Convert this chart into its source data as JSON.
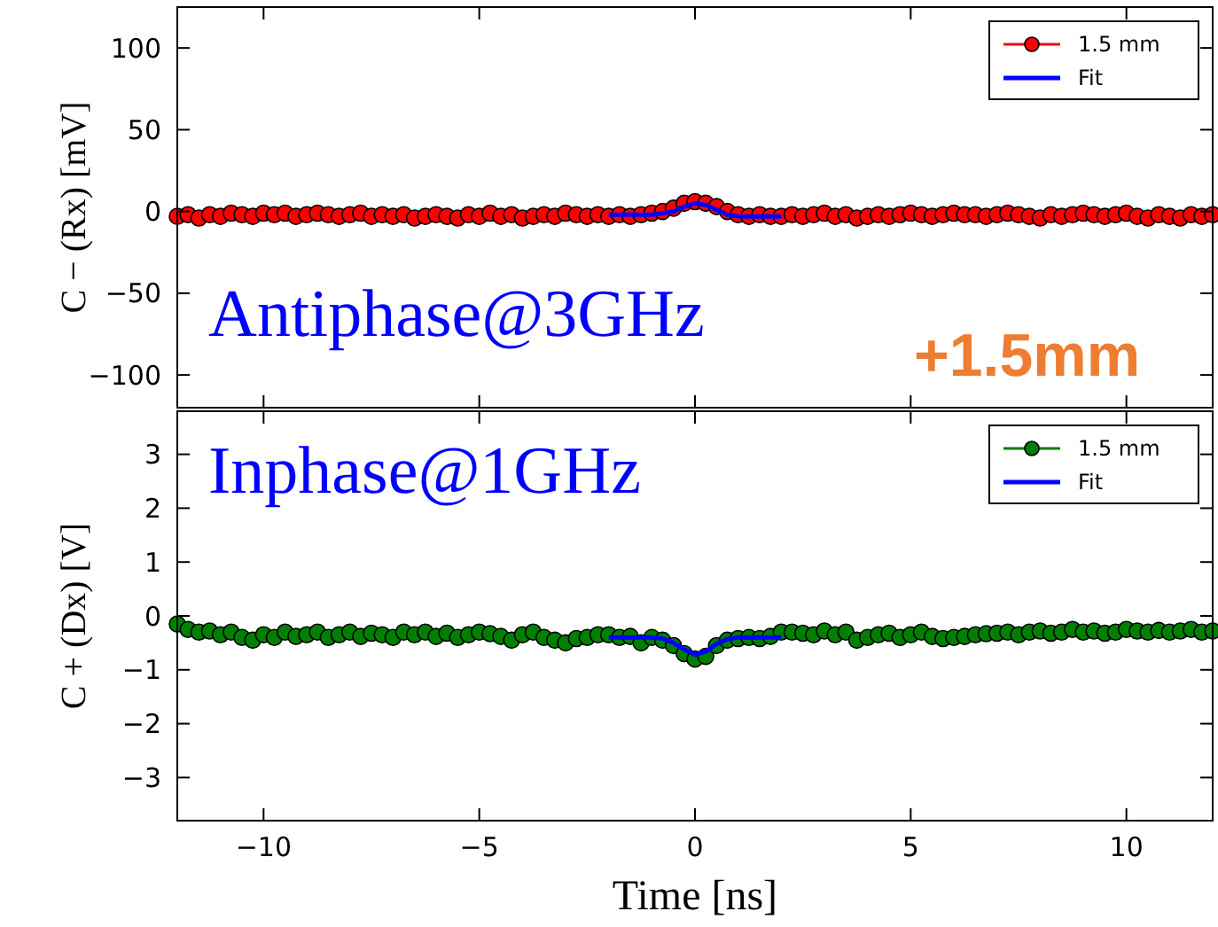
{
  "chart_data": [
    {
      "type": "scatter",
      "ylabel": "C − (Rx) [mV]",
      "xlim": [
        -12,
        12
      ],
      "xticks": [
        -10,
        -5,
        0,
        5,
        10
      ],
      "ylim": [
        -120,
        125
      ],
      "yticks": [
        -100,
        -50,
        0,
        50,
        100
      ],
      "tick_labels": "y",
      "legend": "top right",
      "grid": false,
      "annotations": [
        "Antiphase@3GHz",
        "+1.5mm"
      ],
      "series": [
        {
          "name": "1.5 mm",
          "marker": "circle",
          "color": "#ff0000",
          "x": [
            -12,
            -11.75,
            -11.5,
            -11.25,
            -11,
            -10.75,
            -10.5,
            -10.25,
            -10,
            -9.75,
            -9.5,
            -9.25,
            -9,
            -8.75,
            -8.5,
            -8.25,
            -8,
            -7.75,
            -7.5,
            -7.25,
            -7,
            -6.75,
            -6.5,
            -6.25,
            -6,
            -5.75,
            -5.5,
            -5.25,
            -5,
            -4.75,
            -4.5,
            -4.25,
            -4,
            -3.75,
            -3.5,
            -3.25,
            -3,
            -2.75,
            -2.5,
            -2.25,
            -2,
            -1.75,
            -1.5,
            -1.25,
            -1,
            -0.75,
            -0.5,
            -0.25,
            0,
            0.25,
            0.5,
            0.75,
            1,
            1.25,
            1.5,
            1.75,
            2,
            2.25,
            2.5,
            2.75,
            3,
            3.25,
            3.5,
            3.75,
            4,
            4.25,
            4.5,
            4.75,
            5,
            5.25,
            5.5,
            5.75,
            6,
            6.25,
            6.5,
            6.75,
            7,
            7.25,
            7.5,
            7.75,
            8,
            8.25,
            8.5,
            8.75,
            9,
            9.25,
            9.5,
            9.75,
            10,
            10.25,
            10.5,
            10.75,
            11,
            11.25,
            11.5,
            11.75,
            12
          ],
          "values": [
            -3,
            -2,
            -4,
            -2,
            -3,
            -1,
            -2,
            -3,
            -1,
            -2,
            -1,
            -3,
            -2,
            -1,
            -2,
            -3,
            -2,
            -1,
            -3,
            -2,
            -3,
            -2,
            -4,
            -3,
            -2,
            -3,
            -4,
            -2,
            -3,
            -1,
            -3,
            -2,
            -4,
            -3,
            -2,
            -3,
            -1,
            -2,
            -3,
            -2,
            -3,
            -2,
            -3,
            -2,
            -1,
            0,
            2,
            5,
            6,
            5,
            3,
            0,
            -2,
            -3,
            -2,
            -3,
            -3,
            -2,
            -3,
            -2,
            -1,
            -3,
            -2,
            -4,
            -3,
            -2,
            -3,
            -2,
            -1,
            -2,
            -3,
            -2,
            -1,
            -2,
            -2,
            -3,
            -2,
            -1,
            -2,
            -3,
            -4,
            -2,
            -3,
            -2,
            -1,
            -2,
            -3,
            -2,
            -1,
            -3,
            -4,
            -2,
            -3,
            -4,
            -2,
            -3,
            -2
          ]
        },
        {
          "name": "Fit",
          "type": "line",
          "marker": "none",
          "color": "#0000ff",
          "x": [
            -2,
            -1.75,
            -1.5,
            -1.25,
            -1,
            -0.75,
            -0.5,
            -0.25,
            0,
            0.25,
            0.5,
            0.75,
            1,
            1.25,
            1.5,
            1.75,
            2
          ],
          "values": [
            -2,
            -2,
            -2,
            -2,
            -2,
            -1,
            0,
            3,
            5,
            4,
            1,
            -2,
            -3,
            -3,
            -3,
            -3,
            -3
          ]
        }
      ]
    },
    {
      "type": "scatter",
      "xlabel": "Time [ns]",
      "ylabel": "C + (Dx) [V]",
      "xlim": [
        -12,
        12
      ],
      "xticks": [
        -10,
        -5,
        0,
        5,
        10
      ],
      "ylim": [
        -3.8,
        3.8
      ],
      "yticks": [
        -3,
        -2,
        -1,
        0,
        1,
        2,
        3
      ],
      "legend": "top right",
      "grid": false,
      "annotations": [
        "Inphase@1GHz"
      ],
      "series": [
        {
          "name": "1.5 mm",
          "marker": "circle",
          "color": "#007f00",
          "x": [
            -12,
            -11.75,
            -11.5,
            -11.25,
            -11,
            -10.75,
            -10.5,
            -10.25,
            -10,
            -9.75,
            -9.5,
            -9.25,
            -9,
            -8.75,
            -8.5,
            -8.25,
            -8,
            -7.75,
            -7.5,
            -7.25,
            -7,
            -6.75,
            -6.5,
            -6.25,
            -6,
            -5.75,
            -5.5,
            -5.25,
            -5,
            -4.75,
            -4.5,
            -4.25,
            -4,
            -3.75,
            -3.5,
            -3.25,
            -3,
            -2.75,
            -2.5,
            -2.25,
            -2,
            -1.75,
            -1.5,
            -1.25,
            -1,
            -0.75,
            -0.5,
            -0.25,
            0,
            0.25,
            0.5,
            0.75,
            1,
            1.25,
            1.5,
            1.75,
            2,
            2.25,
            2.5,
            2.75,
            3,
            3.25,
            3.5,
            3.75,
            4,
            4.25,
            4.5,
            4.75,
            5,
            5.25,
            5.5,
            5.75,
            6,
            6.25,
            6.5,
            6.75,
            7,
            7.25,
            7.5,
            7.75,
            8,
            8.25,
            8.5,
            8.75,
            9,
            9.25,
            9.5,
            9.75,
            10,
            10.25,
            10.5,
            10.75,
            11,
            11.25,
            11.5,
            11.75,
            12
          ],
          "values": [
            -0.15,
            -0.25,
            -0.3,
            -0.28,
            -0.35,
            -0.3,
            -0.4,
            -0.45,
            -0.35,
            -0.4,
            -0.3,
            -0.38,
            -0.35,
            -0.3,
            -0.4,
            -0.35,
            -0.3,
            -0.38,
            -0.32,
            -0.35,
            -0.4,
            -0.3,
            -0.35,
            -0.3,
            -0.38,
            -0.32,
            -0.4,
            -0.35,
            -0.3,
            -0.33,
            -0.38,
            -0.45,
            -0.35,
            -0.3,
            -0.4,
            -0.45,
            -0.5,
            -0.42,
            -0.4,
            -0.35,
            -0.35,
            -0.4,
            -0.38,
            -0.5,
            -0.4,
            -0.45,
            -0.55,
            -0.7,
            -0.8,
            -0.75,
            -0.55,
            -0.45,
            -0.42,
            -0.4,
            -0.42,
            -0.38,
            -0.3,
            -0.3,
            -0.32,
            -0.35,
            -0.28,
            -0.35,
            -0.3,
            -0.45,
            -0.4,
            -0.35,
            -0.32,
            -0.4,
            -0.35,
            -0.3,
            -0.38,
            -0.42,
            -0.4,
            -0.38,
            -0.35,
            -0.33,
            -0.32,
            -0.3,
            -0.35,
            -0.3,
            -0.28,
            -0.32,
            -0.3,
            -0.25,
            -0.3,
            -0.28,
            -0.32,
            -0.3,
            -0.25,
            -0.28,
            -0.3,
            -0.27,
            -0.3,
            -0.28,
            -0.25,
            -0.3,
            -0.28
          ]
        },
        {
          "name": "Fit",
          "type": "line",
          "marker": "none",
          "color": "#0000ff",
          "x": [
            -2,
            -1.75,
            -1.5,
            -1.25,
            -1,
            -0.75,
            -0.5,
            -0.25,
            0,
            0.25,
            0.5,
            0.75,
            1,
            1.25,
            1.5,
            1.75,
            2
          ],
          "values": [
            -0.4,
            -0.4,
            -0.4,
            -0.4,
            -0.4,
            -0.42,
            -0.5,
            -0.62,
            -0.72,
            -0.66,
            -0.52,
            -0.43,
            -0.4,
            -0.4,
            -0.4,
            -0.4,
            -0.4
          ]
        }
      ]
    }
  ]
}
